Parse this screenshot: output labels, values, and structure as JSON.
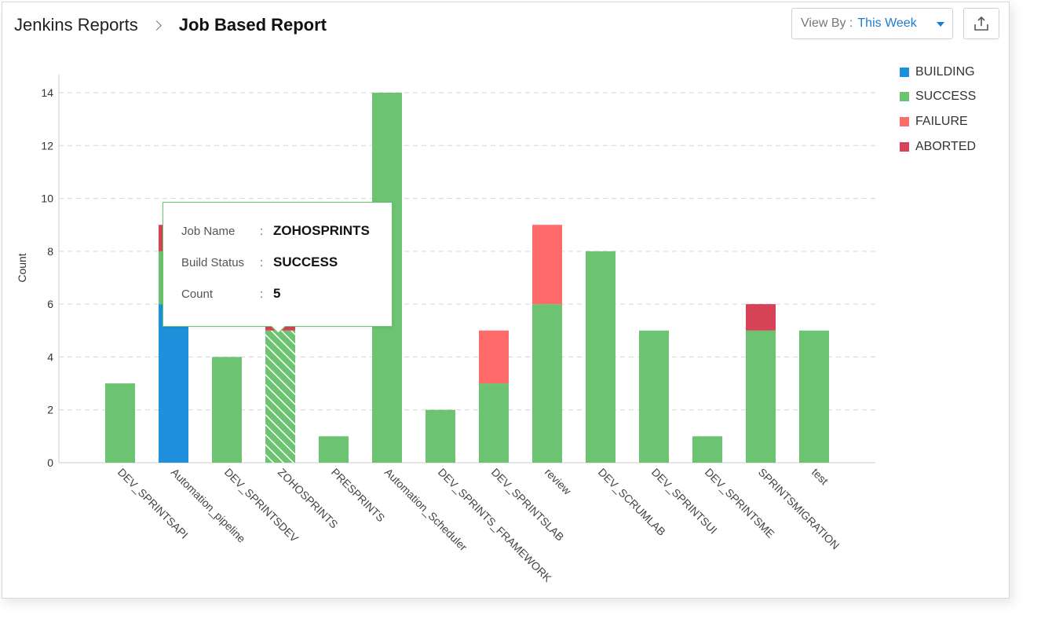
{
  "breadcrumb": {
    "parent": "Jenkins Reports",
    "current": "Job Based Report"
  },
  "view_by": {
    "label": "View By :",
    "value": "This Week"
  },
  "icons": {
    "export": "export-icon",
    "dropdown": "chevron-down-icon",
    "breadcrumb_separator": "chevron-right-icon"
  },
  "colors": {
    "BUILDING": "#1e90dc",
    "SUCCESS": "#6cc371",
    "FAILURE": "#ff6b6b",
    "ABORTED": "#d64356"
  },
  "tooltip": {
    "rows": [
      {
        "key": "Job Name",
        "value": "ZOHOSPRINTS"
      },
      {
        "key": "Build Status",
        "value": "SUCCESS"
      },
      {
        "key": "Count",
        "value": "5"
      }
    ]
  },
  "chart_data": {
    "type": "bar",
    "stacked": true,
    "title": "",
    "xlabel": "",
    "ylabel": "Count",
    "ylim": [
      0,
      14
    ],
    "yticks": [
      0,
      2,
      4,
      6,
      8,
      10,
      12,
      14
    ],
    "grid": true,
    "legend_position": "top-right",
    "categories": [
      "DEV_SPRINTSAPI",
      "Automation_pipeline",
      "DEV_SPRINTSDEV",
      "ZOHOSPRINTS",
      "PRESPRINTS",
      "Automation_Scheduler",
      "DEV_SPRINTS_FRAMEWORK",
      "DEV_SPRINTSLAB",
      "review",
      "DEV_SCRUMLAB",
      "DEV_SPRINTSUI",
      "DEV_SPRINTSME",
      "SPRINTSMIGRATION",
      "test"
    ],
    "series": [
      {
        "name": "BUILDING",
        "values": [
          0,
          6,
          0,
          0,
          0,
          0,
          0,
          0,
          0,
          0,
          0,
          0,
          0,
          0
        ]
      },
      {
        "name": "SUCCESS",
        "values": [
          3,
          2,
          4,
          5,
          1,
          14,
          2,
          3,
          6,
          8,
          5,
          1,
          5,
          5
        ]
      },
      {
        "name": "FAILURE",
        "values": [
          0,
          0,
          0,
          0,
          0,
          0,
          0,
          2,
          3,
          0,
          0,
          0,
          0,
          0
        ]
      },
      {
        "name": "ABORTED",
        "values": [
          0,
          1,
          0,
          1,
          0,
          0,
          0,
          0,
          0,
          0,
          0,
          0,
          1,
          0
        ]
      }
    ],
    "highlighted": {
      "category": "ZOHOSPRINTS",
      "series": "SUCCESS"
    }
  }
}
